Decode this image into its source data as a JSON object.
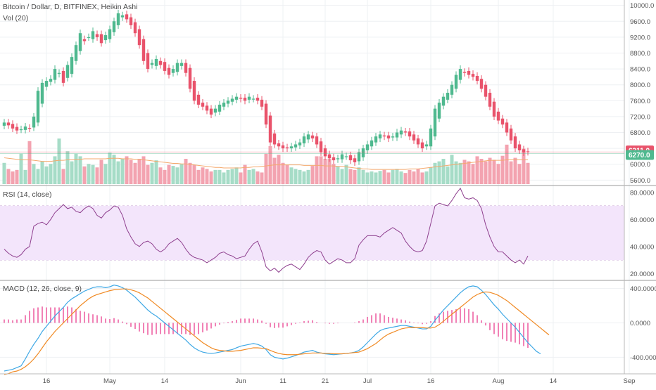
{
  "colors": {
    "up": "#4fb98f",
    "down": "#e9536b",
    "vol_up": "#a6dcc7",
    "vol_down": "#f3a3b0",
    "vol_ma": "#f4a96d",
    "rsi_line": "#8e3f8e",
    "rsi_band": "#f3e5fb",
    "macd_line": "#3ea8e5",
    "signal_line": "#f08a24",
    "histogram": "#e93e8f",
    "grid": "#eef0f3",
    "border": "#b8b8b8",
    "price_tag_up": "#e9536b",
    "price_tag_ma": "#4fb98f"
  },
  "price_pane": {
    "title": "Bitcoin / Dollar, D, BITFINEX, Heikin Ashi",
    "volume_title": "Vol (20)"
  },
  "rsi_pane": {
    "title": "RSI (14, close)"
  },
  "macd_pane": {
    "title": "MACD (12, 26, close, 9)"
  },
  "chart_data": {
    "type": "candlestick",
    "candle_style": "Heikin Ashi",
    "price_axis": {
      "ylim": [
        5500,
        10100
      ],
      "ticks": [
        "10000.0",
        "9600.0",
        "9200.0",
        "8800.0",
        "8400.0",
        "8000.0",
        "7600.0",
        "7200.0",
        "6800.0",
        "6400.0",
        "6000.0",
        "5600.0"
      ]
    },
    "price_labels": [
      {
        "text": "6311.0",
        "value": 6311,
        "color": "price_tag_up"
      },
      {
        "text": "6270.0",
        "value": 6270,
        "color": "price_tag_ma"
      }
    ],
    "x_ticks": [
      {
        "label": "16",
        "index": 10
      },
      {
        "label": "May",
        "index": 25
      },
      {
        "label": "14",
        "index": 38
      },
      {
        "label": "Jun",
        "index": 56
      },
      {
        "label": "11",
        "index": 66
      },
      {
        "label": "21",
        "index": 76
      },
      {
        "label": "Jul",
        "index": 86
      },
      {
        "label": "16",
        "index": 101
      },
      {
        "label": "Aug",
        "index": 117
      },
      {
        "label": "14",
        "index": 130
      },
      {
        "label": "Sep",
        "index": 148
      }
    ],
    "close": [
      7050,
      6980,
      6900,
      6850,
      6880,
      6950,
      6900,
      7200,
      7850,
      8050,
      8100,
      8150,
      8400,
      8300,
      8050,
      8500,
      8700,
      9000,
      9300,
      9100,
      9200,
      9350,
      9200,
      9050,
      9250,
      9400,
      9600,
      9800,
      9750,
      9650,
      9500,
      9300,
      9000,
      8600,
      8400,
      8550,
      8650,
      8500,
      8350,
      8250,
      8400,
      8550,
      8550,
      8300,
      7900,
      7600,
      7500,
      7450,
      7350,
      7250,
      7400,
      7500,
      7550,
      7600,
      7650,
      7700,
      7650,
      7600,
      7700,
      7650,
      7600,
      7450,
      7000,
      6550,
      6500,
      6450,
      6400,
      6400,
      6450,
      6500,
      6550,
      6700,
      6750,
      6650,
      6500,
      6300,
      6200,
      6150,
      6100,
      6150,
      6250,
      6200,
      6100,
      6050,
      6300,
      6400,
      6500,
      6600,
      6700,
      6750,
      6700,
      6650,
      6700,
      6800,
      6850,
      6800,
      6700,
      6600,
      6500,
      6400,
      6500,
      6900,
      7400,
      7550,
      7700,
      7800,
      8000,
      8250,
      8400,
      8300,
      8250,
      8200,
      8100,
      7900,
      7700,
      7450,
      7200,
      7100,
      7000,
      6800,
      6600,
      6400,
      6350,
      6300,
      6311
    ],
    "volume": [
      0.42,
      0.3,
      0.25,
      0.28,
      0.6,
      0.28,
      0.85,
      0.4,
      0.3,
      0.45,
      0.35,
      0.4,
      0.55,
      0.9,
      0.3,
      0.65,
      0.45,
      0.6,
      0.55,
      0.35,
      0.4,
      0.38,
      0.33,
      0.48,
      0.4,
      0.62,
      0.58,
      0.45,
      0.5,
      0.55,
      0.48,
      0.42,
      0.5,
      0.55,
      0.38,
      0.42,
      0.47,
      0.33,
      0.28,
      0.38,
      0.36,
      0.33,
      0.4,
      0.5,
      0.42,
      0.38,
      0.28,
      0.33,
      0.3,
      0.25,
      0.28,
      0.28,
      0.23,
      0.28,
      0.3,
      0.33,
      0.23,
      0.38,
      0.28,
      0.3,
      0.25,
      0.23,
      0.6,
      0.75,
      0.52,
      0.58,
      0.42,
      0.38,
      0.33,
      0.3,
      0.28,
      0.25,
      0.28,
      0.36,
      0.55,
      0.55,
      0.5,
      0.5,
      0.4,
      0.35,
      0.3,
      0.38,
      0.3,
      0.28,
      0.33,
      0.28,
      0.23,
      0.25,
      0.23,
      0.26,
      0.28,
      0.23,
      0.28,
      0.3,
      0.25,
      0.22,
      0.28,
      0.25,
      0.3,
      0.23,
      0.25,
      0.33,
      0.42,
      0.45,
      0.5,
      0.35,
      0.58,
      0.45,
      0.42,
      0.48,
      0.45,
      0.4,
      0.55,
      0.5,
      0.45,
      0.52,
      0.48,
      0.4,
      0.56,
      0.78,
      0.45,
      0.52,
      0.4,
      0.7,
      0.42
    ],
    "volume_ma": [
      0.52,
      0.51,
      0.5,
      0.49,
      0.48,
      0.48,
      0.48,
      0.47,
      0.46,
      0.45,
      0.45,
      0.45,
      0.46,
      0.47,
      0.47,
      0.48,
      0.48,
      0.49,
      0.49,
      0.5,
      0.5,
      0.5,
      0.5,
      0.5,
      0.5,
      0.51,
      0.51,
      0.51,
      0.5,
      0.5,
      0.5,
      0.49,
      0.49,
      0.48,
      0.47,
      0.46,
      0.45,
      0.44,
      0.43,
      0.42,
      0.41,
      0.41,
      0.4,
      0.4,
      0.39,
      0.38,
      0.37,
      0.36,
      0.35,
      0.34,
      0.33,
      0.33,
      0.32,
      0.32,
      0.32,
      0.32,
      0.32,
      0.33,
      0.33,
      0.34,
      0.34,
      0.35,
      0.36,
      0.37,
      0.38,
      0.38,
      0.38,
      0.38,
      0.38,
      0.38,
      0.38,
      0.37,
      0.37,
      0.37,
      0.37,
      0.37,
      0.36,
      0.36,
      0.36,
      0.35,
      0.35,
      0.34,
      0.33,
      0.32,
      0.31,
      0.3,
      0.3,
      0.29,
      0.29,
      0.29,
      0.29,
      0.29,
      0.29,
      0.29,
      0.29,
      0.29,
      0.3,
      0.3,
      0.3,
      0.31,
      0.32,
      0.33,
      0.34,
      0.35,
      0.36,
      0.37,
      0.38,
      0.39,
      0.4,
      0.41,
      0.42,
      0.43,
      0.44,
      0.45,
      0.46,
      0.47,
      0.47,
      0.47,
      0.47,
      0.48,
      0.48,
      0.48,
      0.48,
      0.48,
      0.48
    ],
    "rsi": {
      "ylim": [
        16,
        83
      ],
      "ticks": [
        "80.0000",
        "60.0000",
        "40.0000",
        "20.0000"
      ],
      "band": [
        30,
        70
      ],
      "values": [
        38,
        35,
        33,
        32,
        34,
        38,
        40,
        55,
        57,
        58,
        56,
        60,
        65,
        68,
        71,
        68,
        69,
        66,
        65,
        68,
        70,
        68,
        63,
        61,
        65,
        67,
        70,
        69,
        63,
        53,
        47,
        42,
        40,
        43,
        44,
        42,
        38,
        36,
        38,
        42,
        44,
        46,
        43,
        38,
        34,
        32,
        31,
        30,
        28,
        30,
        32,
        35,
        36,
        34,
        33,
        31,
        32,
        33,
        38,
        42,
        44,
        36,
        25,
        22,
        24,
        21,
        24,
        26,
        27,
        25,
        23,
        27,
        32,
        35,
        37,
        36,
        30,
        27,
        29,
        31,
        30,
        28,
        28,
        31,
        41,
        45,
        48,
        48,
        48,
        47,
        50,
        52,
        54,
        52,
        50,
        44,
        40,
        37,
        36,
        37,
        44,
        57,
        70,
        72,
        71,
        70,
        74,
        79,
        83,
        76,
        75,
        76,
        74,
        68,
        56,
        47,
        40,
        36,
        36,
        33,
        30,
        28,
        30,
        27,
        33
      ]
    },
    "macd": {
      "ylim": [
        -560,
        470
      ],
      "ticks": [
        "400.0000",
        "0.0000",
        "-400.0000"
      ],
      "macd_line": [
        -560,
        -550,
        -540,
        -520,
        -500,
        -420,
        -330,
        -250,
        -180,
        -100,
        -40,
        20,
        80,
        130,
        180,
        240,
        280,
        310,
        340,
        370,
        390,
        410,
        420,
        420,
        410,
        420,
        440,
        430,
        410,
        380,
        340,
        300,
        250,
        200,
        150,
        110,
        80,
        40,
        0,
        -40,
        -80,
        -120,
        -160,
        -200,
        -250,
        -290,
        -320,
        -340,
        -350,
        -355,
        -350,
        -340,
        -330,
        -320,
        -310,
        -290,
        -270,
        -260,
        -250,
        -240,
        -250,
        -270,
        -310,
        -370,
        -400,
        -410,
        -420,
        -410,
        -395,
        -380,
        -360,
        -340,
        -330,
        -320,
        -340,
        -350,
        -360,
        -365,
        -370,
        -365,
        -360,
        -355,
        -350,
        -340,
        -320,
        -280,
        -230,
        -180,
        -130,
        -90,
        -70,
        -60,
        -50,
        -40,
        -30,
        -30,
        -40,
        -50,
        -60,
        -70,
        -70,
        -40,
        30,
        90,
        150,
        200,
        250,
        300,
        350,
        390,
        420,
        430,
        420,
        380,
        330,
        270,
        210,
        160,
        100,
        50,
        0,
        -50,
        -110,
        -170,
        -230,
        -280,
        -330,
        -360
      ],
      "signal_line": [
        -600,
        -590,
        -570,
        -560,
        -540,
        -510,
        -470,
        -420,
        -360,
        -290,
        -220,
        -160,
        -100,
        -50,
        0,
        50,
        100,
        150,
        200,
        240,
        280,
        310,
        330,
        345,
        360,
        375,
        385,
        390,
        395,
        395,
        385,
        370,
        350,
        320,
        290,
        250,
        210,
        170,
        130,
        90,
        50,
        10,
        -30,
        -70,
        -110,
        -150,
        -190,
        -230,
        -260,
        -290,
        -310,
        -320,
        -325,
        -330,
        -330,
        -325,
        -320,
        -310,
        -300,
        -290,
        -290,
        -295,
        -300,
        -320,
        -340,
        -355,
        -365,
        -370,
        -370,
        -370,
        -365,
        -360,
        -355,
        -350,
        -350,
        -350,
        -355,
        -355,
        -360,
        -360,
        -360,
        -355,
        -350,
        -345,
        -340,
        -320,
        -300,
        -270,
        -240,
        -200,
        -160,
        -130,
        -110,
        -90,
        -70,
        -60,
        -55,
        -55,
        -55,
        -55,
        -60,
        -60,
        -50,
        -20,
        20,
        60,
        100,
        140,
        180,
        220,
        260,
        300,
        330,
        350,
        360,
        355,
        340,
        320,
        290,
        260,
        220,
        180,
        140,
        100,
        60,
        20,
        -20,
        -60,
        -100,
        -140
      ]
    }
  }
}
